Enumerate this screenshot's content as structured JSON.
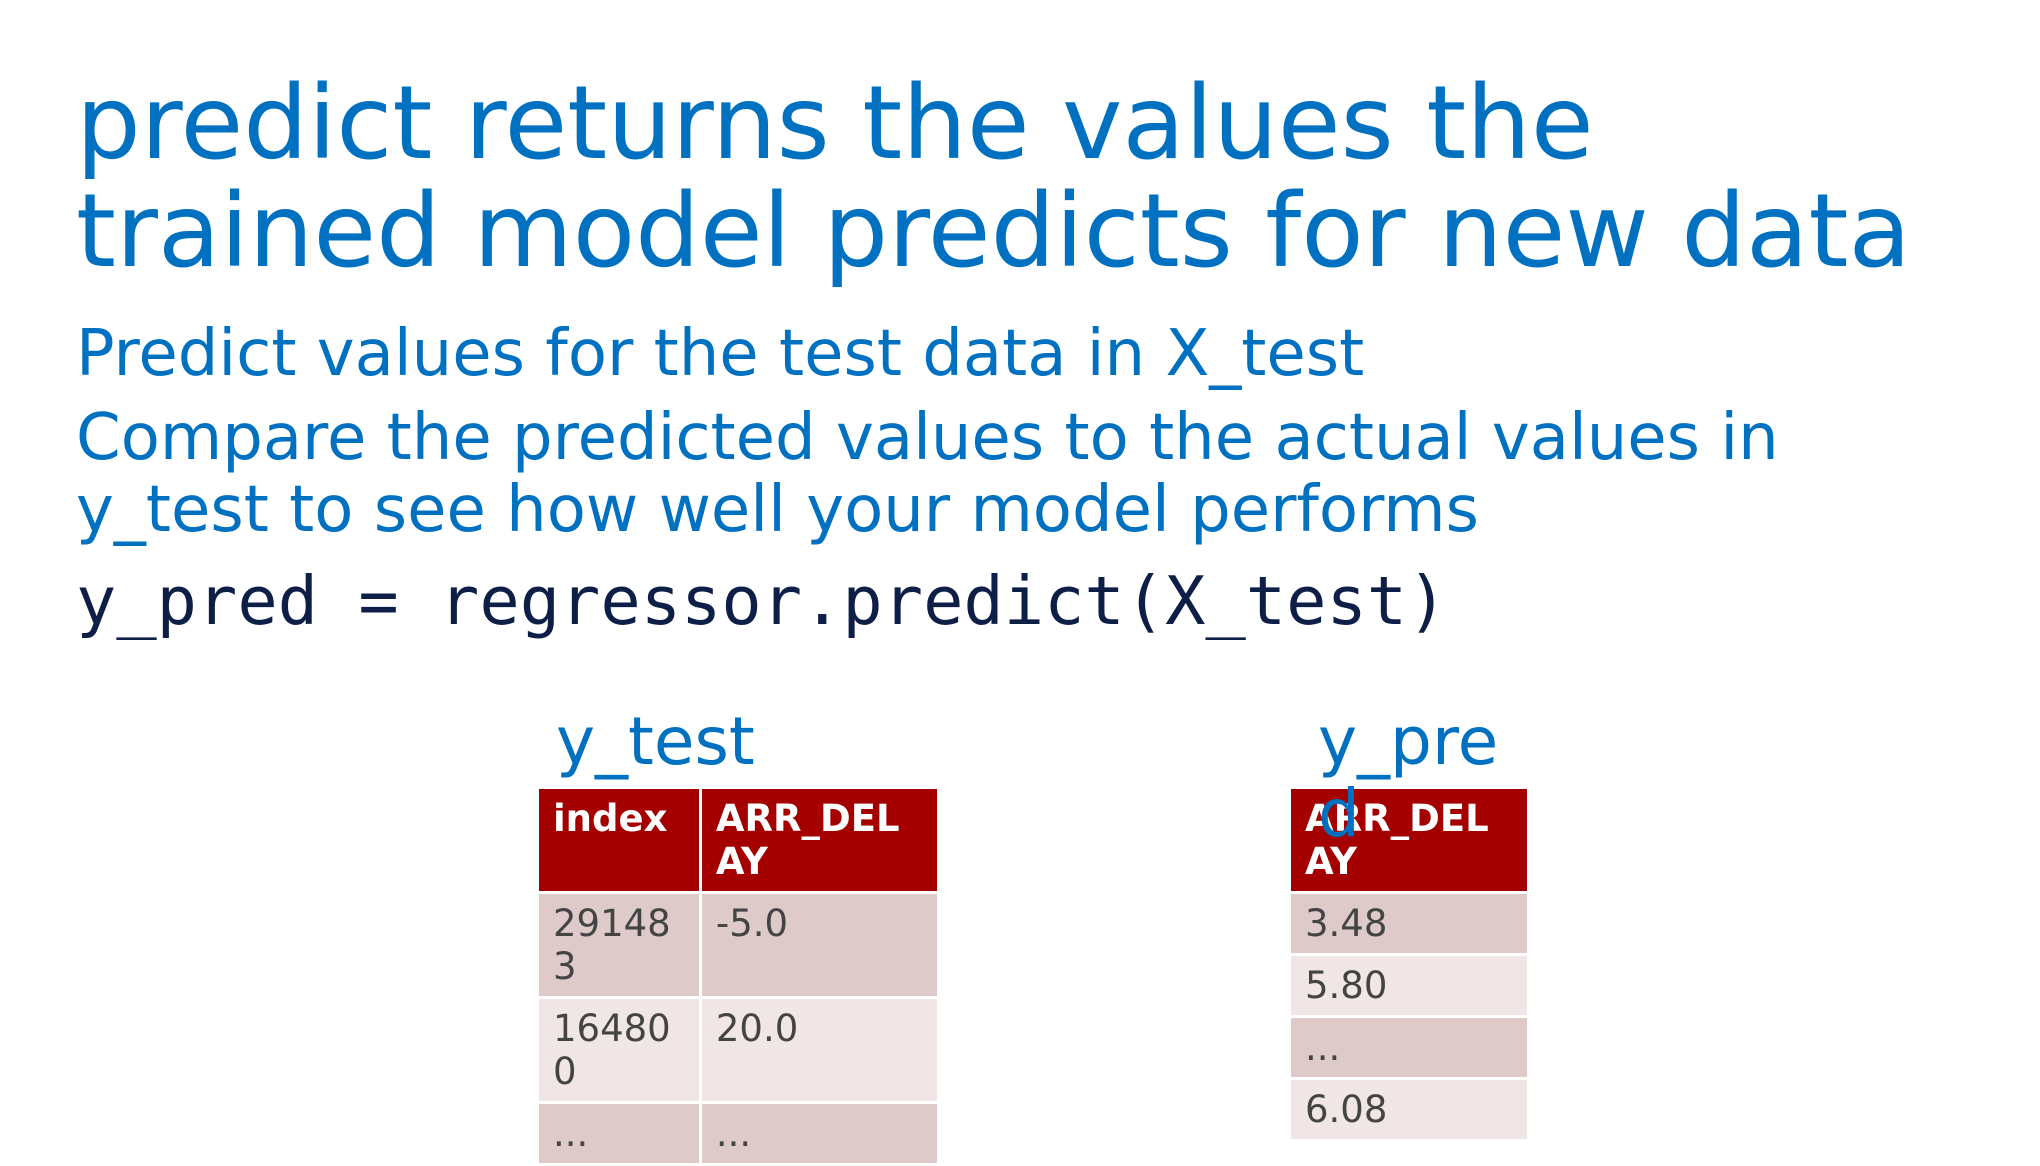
{
  "title": "predict returns the values the trained model predicts for new data",
  "bullets": [
    "Predict values for the test data in X_test",
    "Compare the predicted values to the actual values in y_test to see how well your model performs"
  ],
  "code": "y_pred = regressor.predict(X_test)",
  "y_test_table": {
    "label": "y_test",
    "headers": [
      "index",
      "ARR_DEL AY"
    ],
    "rows": [
      [
        "29148 3",
        "-5.0"
      ],
      [
        "16480 0",
        "20.0"
      ],
      [
        "...",
        "..."
      ]
    ]
  },
  "y_pred_table": {
    "label": "y_pre d",
    "headers": [
      "ARR_DEL AY"
    ],
    "rows": [
      [
        "3.48"
      ],
      [
        "5.80"
      ],
      [
        "..."
      ],
      [
        "6.08"
      ]
    ]
  },
  "colors": {
    "title": "#0070c0",
    "code": "#0e1f47",
    "header_bg": "#a50000",
    "row_odd": "#dfcaca",
    "row_even": "#efe6e5"
  }
}
